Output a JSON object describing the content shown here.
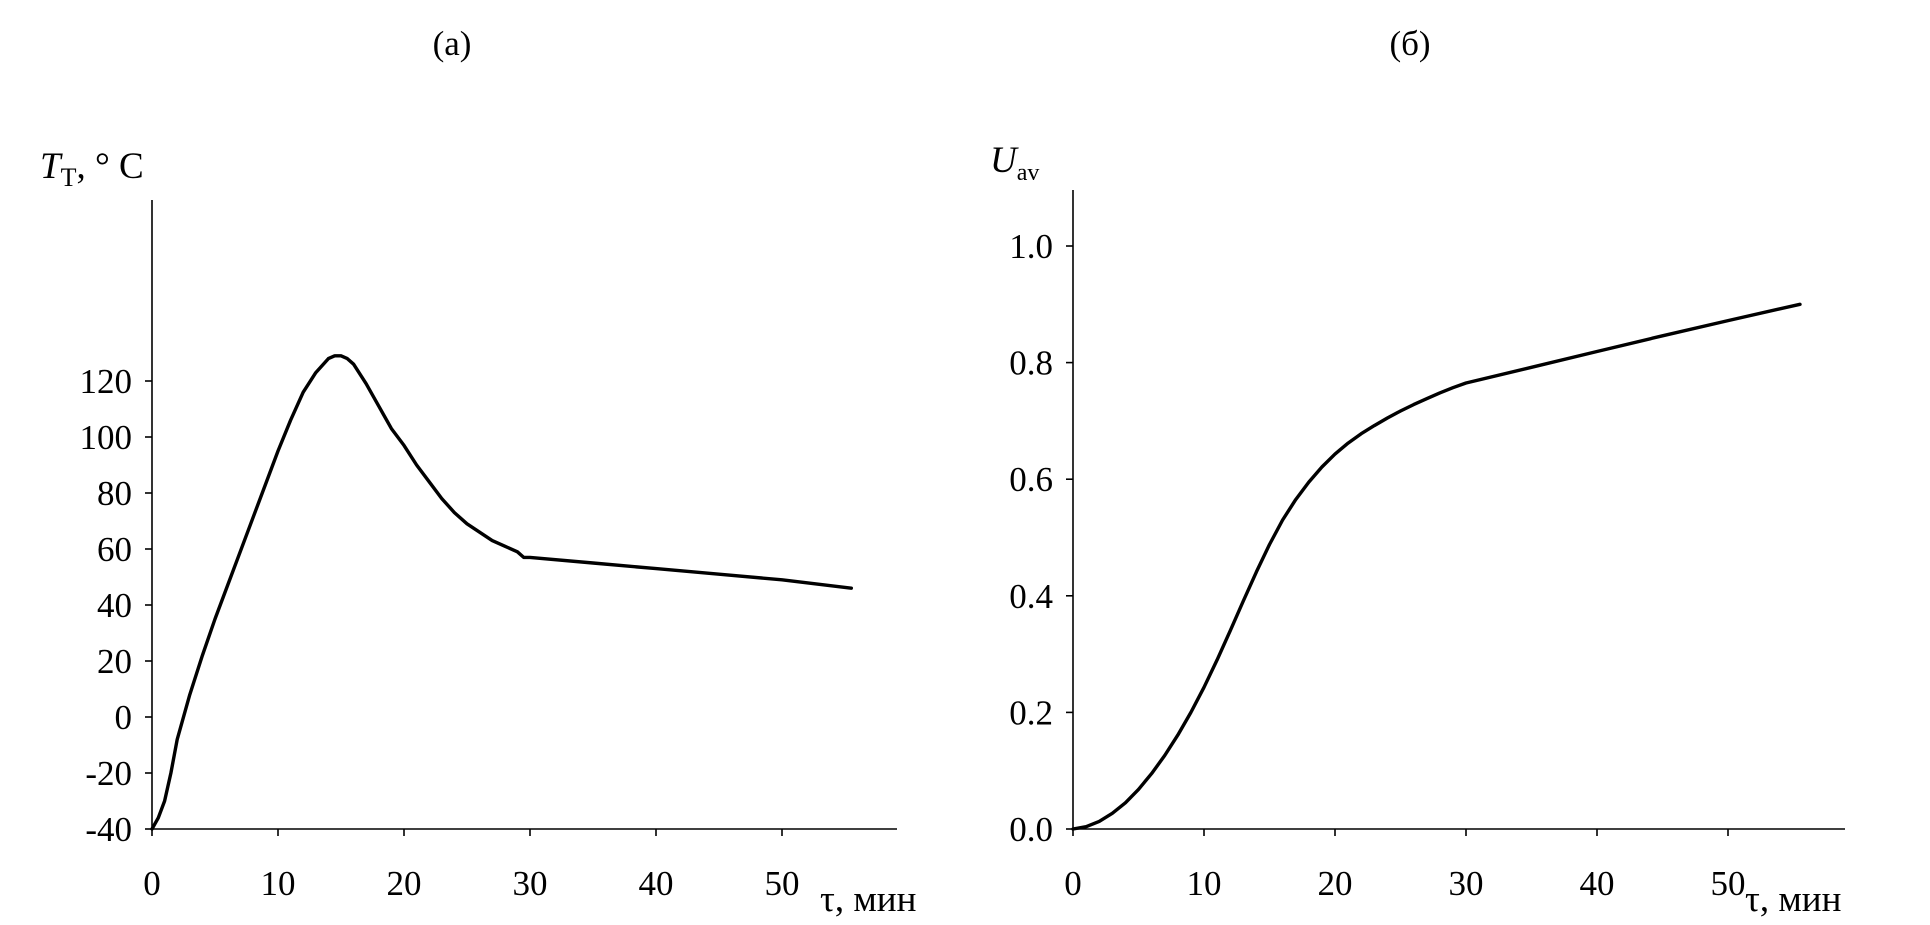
{
  "chart_data": [
    {
      "type": "line",
      "panel_label": "(а)",
      "ylabel": {
        "symbol": "T",
        "subscript": "T",
        "unit": ", ° C"
      },
      "xlabel": "τ, мин",
      "xlim": [
        0,
        59
      ],
      "ylim": [
        -40,
        140
      ],
      "xticks": [
        0,
        10,
        20,
        30,
        40,
        50
      ],
      "yticks": [
        -40,
        -20,
        0,
        20,
        40,
        60,
        80,
        100,
        120
      ],
      "series": [
        {
          "x": [
            0,
            0.5,
            1,
            1.5,
            2,
            3,
            4,
            5,
            6,
            7,
            8,
            9,
            10,
            11,
            12,
            13,
            14,
            14.5,
            15,
            15.5,
            16,
            17,
            18,
            19,
            20,
            21,
            22,
            23,
            24,
            25,
            26,
            27,
            28,
            29,
            29.5,
            30,
            35,
            40,
            45,
            50,
            55.5
          ],
          "y": [
            -40,
            -36,
            -30,
            -20,
            -8,
            8,
            22,
            35,
            47,
            59,
            71,
            83,
            95,
            106,
            116,
            123,
            128,
            129,
            129,
            128,
            126,
            119,
            111,
            103,
            97,
            90,
            84,
            78,
            73,
            69,
            66,
            63,
            61,
            59,
            57,
            57,
            55,
            53,
            51,
            49,
            46
          ]
        }
      ]
    },
    {
      "type": "line",
      "panel_label": "(б)",
      "ylabel": {
        "symbol": "U",
        "subscript": "av"
      },
      "xlabel": "τ, мин",
      "xlim": [
        0,
        59
      ],
      "ylim": [
        0,
        1.1
      ],
      "xticks": [
        0,
        10,
        20,
        30,
        40,
        50
      ],
      "yticks": [
        "0.0",
        "0.2",
        "0.4",
        "0.6",
        "0.8",
        "1.0"
      ],
      "series": [
        {
          "x": [
            0,
            1,
            2,
            3,
            4,
            5,
            6,
            7,
            8,
            9,
            10,
            11,
            12,
            13,
            14,
            15,
            16,
            17,
            18,
            19,
            20,
            21,
            22,
            23,
            24,
            25,
            26,
            27,
            28,
            29,
            30,
            35,
            40,
            45,
            50,
            55.5
          ],
          "y": [
            0,
            0.004,
            0.013,
            0.027,
            0.045,
            0.068,
            0.095,
            0.126,
            0.161,
            0.2,
            0.243,
            0.29,
            0.34,
            0.391,
            0.441,
            0.488,
            0.53,
            0.565,
            0.595,
            0.621,
            0.643,
            0.662,
            0.678,
            0.692,
            0.705,
            0.717,
            0.728,
            0.738,
            0.748,
            0.757,
            0.765,
            0.792,
            0.819,
            0.846,
            0.872,
            0.9
          ]
        }
      ]
    }
  ]
}
